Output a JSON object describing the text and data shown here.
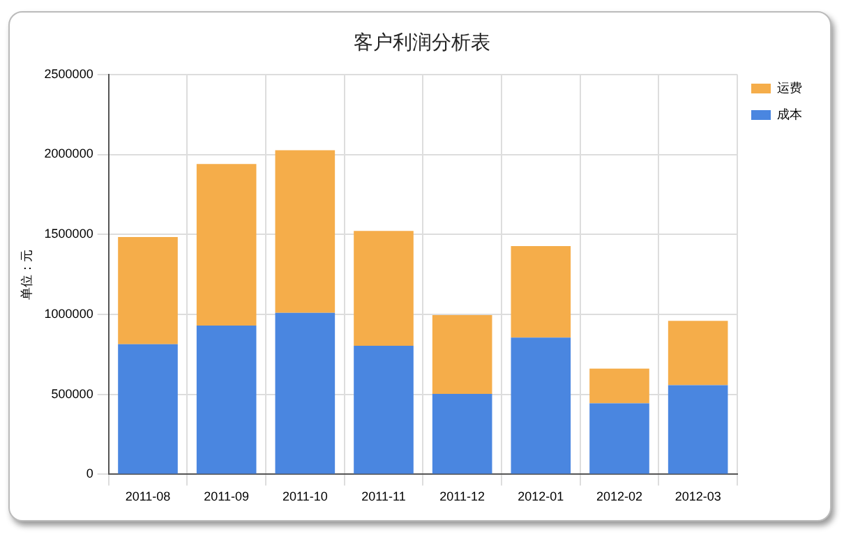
{
  "chart_data": {
    "type": "bar",
    "title": "客户利润分析表",
    "ylabel": "单位：元",
    "categories": [
      "2011-08",
      "2011-09",
      "2011-10",
      "2011-11",
      "2011-12",
      "2012-01",
      "2012-02",
      "2012-03"
    ],
    "series": [
      {
        "name": "成本",
        "color": "#4a86e0",
        "values": [
          813000,
          930000,
          1010000,
          804000,
          503000,
          855000,
          444000,
          557000
        ]
      },
      {
        "name": "运费",
        "color": "#f5ad4a",
        "values": [
          671000,
          1010000,
          1016000,
          718000,
          492000,
          572000,
          217000,
          402000
        ]
      }
    ],
    "stacked": true,
    "ylim": [
      0,
      2500000
    ],
    "yticks": [
      0,
      500000,
      1000000,
      1500000,
      2000000,
      2500000
    ],
    "grid": true,
    "legend": "top right"
  }
}
